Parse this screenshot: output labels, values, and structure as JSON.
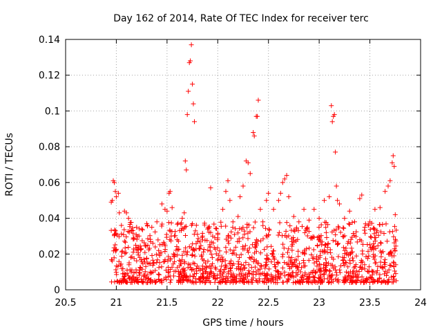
{
  "chart_data": {
    "type": "scatter",
    "title": "Day 162 of 2014, Rate Of TEC Index for receiver terc",
    "xlabel": "GPS time / hours",
    "ylabel": "ROTI / TECUs",
    "xlim": [
      20.5,
      24
    ],
    "ylim": [
      0,
      0.14
    ],
    "xticks": [
      20.5,
      21,
      21.5,
      22,
      22.5,
      23,
      23.5,
      24
    ],
    "xtick_labels": [
      "20.5",
      "21",
      "21.5",
      "22",
      "22.5",
      "23",
      "23.5",
      "24"
    ],
    "yticks": [
      0,
      0.02,
      0.04,
      0.06,
      0.08,
      0.1,
      0.12,
      0.14
    ],
    "ytick_labels": [
      "0",
      "0.02",
      "0.04",
      "0.06",
      "0.08",
      "0.1",
      "0.12",
      "0.14"
    ],
    "grid": true,
    "marker": "+",
    "color": "#ff0000",
    "series": [
      {
        "name": "ROTI",
        "points": [
          [
            20.95,
            0.049
          ],
          [
            20.96,
            0.05
          ],
          [
            20.97,
            0.061
          ],
          [
            20.98,
            0.06
          ],
          [
            20.99,
            0.055
          ],
          [
            21.02,
            0.054
          ],
          [
            21.0,
            0.052
          ],
          [
            21.05,
            0.036
          ],
          [
            21.03,
            0.043
          ],
          [
            21.08,
            0.044
          ],
          [
            21.1,
            0.043
          ],
          [
            21.12,
            0.04
          ],
          [
            21.15,
            0.033
          ],
          [
            21.2,
            0.035
          ],
          [
            21.25,
            0.034
          ],
          [
            21.3,
            0.037
          ],
          [
            21.35,
            0.035
          ],
          [
            21.4,
            0.038
          ],
          [
            21.45,
            0.048
          ],
          [
            21.48,
            0.045
          ],
          [
            21.5,
            0.044
          ],
          [
            21.52,
            0.054
          ],
          [
            21.53,
            0.055
          ],
          [
            21.55,
            0.046
          ],
          [
            21.6,
            0.028
          ],
          [
            21.65,
            0.04
          ],
          [
            21.67,
            0.043
          ],
          [
            21.68,
            0.072
          ],
          [
            21.69,
            0.067
          ],
          [
            21.7,
            0.098
          ],
          [
            21.71,
            0.111
          ],
          [
            21.72,
            0.127
          ],
          [
            21.73,
            0.128
          ],
          [
            21.74,
            0.137
          ],
          [
            21.75,
            0.115
          ],
          [
            21.76,
            0.104
          ],
          [
            21.77,
            0.094
          ],
          [
            21.78,
            0.033
          ],
          [
            21.8,
            0.031
          ],
          [
            21.85,
            0.03
          ],
          [
            21.9,
            0.034
          ],
          [
            21.93,
            0.057
          ],
          [
            21.95,
            0.03
          ],
          [
            22.0,
            0.029
          ],
          [
            22.05,
            0.045
          ],
          [
            22.08,
            0.055
          ],
          [
            22.1,
            0.061
          ],
          [
            22.12,
            0.05
          ],
          [
            22.15,
            0.038
          ],
          [
            22.2,
            0.041
          ],
          [
            22.22,
            0.052
          ],
          [
            22.25,
            0.058
          ],
          [
            22.28,
            0.072
          ],
          [
            22.3,
            0.071
          ],
          [
            22.32,
            0.065
          ],
          [
            22.35,
            0.088
          ],
          [
            22.36,
            0.086
          ],
          [
            22.38,
            0.097
          ],
          [
            22.39,
            0.097
          ],
          [
            22.4,
            0.106
          ],
          [
            22.42,
            0.045
          ],
          [
            22.48,
            0.05
          ],
          [
            22.5,
            0.054
          ],
          [
            22.55,
            0.045
          ],
          [
            22.6,
            0.05
          ],
          [
            22.62,
            0.054
          ],
          [
            22.64,
            0.06
          ],
          [
            22.66,
            0.062
          ],
          [
            22.68,
            0.064
          ],
          [
            22.7,
            0.052
          ],
          [
            22.75,
            0.041
          ],
          [
            22.8,
            0.038
          ],
          [
            22.85,
            0.045
          ],
          [
            22.9,
            0.039
          ],
          [
            22.95,
            0.045
          ],
          [
            23.0,
            0.04
          ],
          [
            23.05,
            0.05
          ],
          [
            23.1,
            0.052
          ],
          [
            23.12,
            0.103
          ],
          [
            23.13,
            0.094
          ],
          [
            23.14,
            0.097
          ],
          [
            23.15,
            0.098
          ],
          [
            23.16,
            0.077
          ],
          [
            23.17,
            0.058
          ],
          [
            23.18,
            0.05
          ],
          [
            23.2,
            0.048
          ],
          [
            23.25,
            0.04
          ],
          [
            23.3,
            0.044
          ],
          [
            23.35,
            0.038
          ],
          [
            23.4,
            0.051
          ],
          [
            23.42,
            0.053
          ],
          [
            23.45,
            0.035
          ],
          [
            23.5,
            0.038
          ],
          [
            23.55,
            0.045
          ],
          [
            23.6,
            0.046
          ],
          [
            23.65,
            0.055
          ],
          [
            23.68,
            0.058
          ],
          [
            23.7,
            0.061
          ],
          [
            23.72,
            0.071
          ],
          [
            23.73,
            0.075
          ],
          [
            23.74,
            0.069
          ],
          [
            23.75,
            0.042
          ]
        ],
        "band": {
          "x_range": [
            20.95,
            23.76
          ],
          "y_range": [
            0.004,
            0.038
          ],
          "count": 1300
        }
      }
    ]
  }
}
